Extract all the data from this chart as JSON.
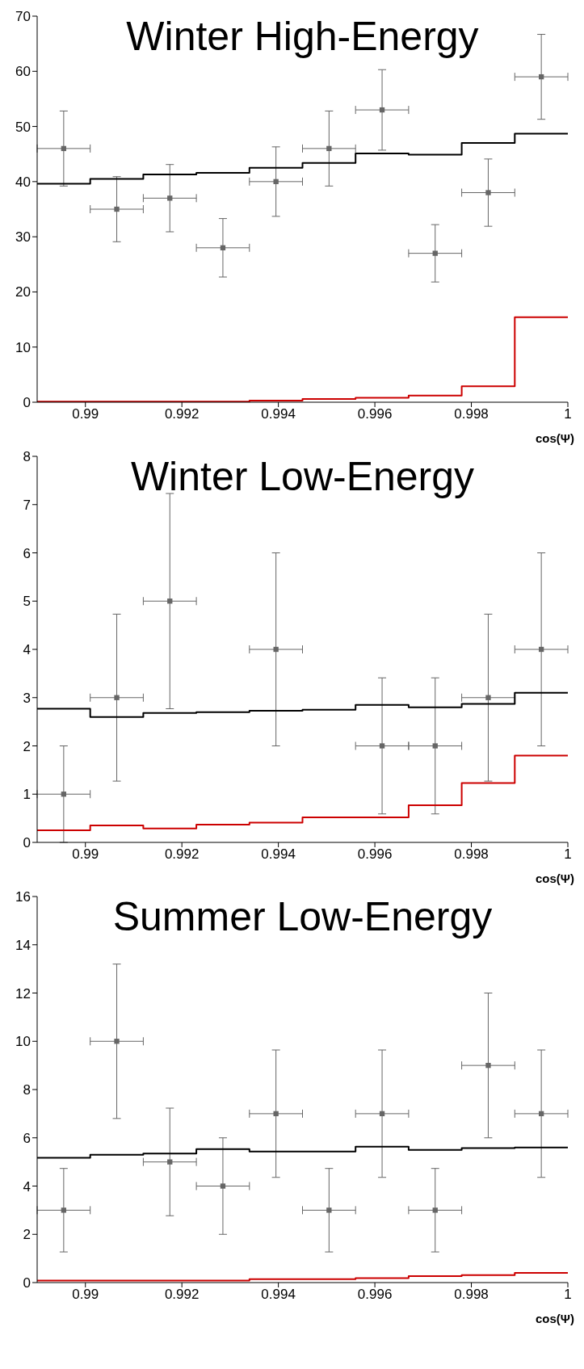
{
  "chart_data": [
    {
      "type": "scatter",
      "title": "Winter High-Energy",
      "xlabel": "cos(Ψ)",
      "xlim": [
        0.989,
        1
      ],
      "xticks": [
        0.99,
        0.992,
        0.994,
        0.996,
        0.998,
        1
      ],
      "ylim": [
        0,
        70
      ],
      "yticks": [
        0,
        10,
        20,
        30,
        40,
        50,
        60,
        70
      ],
      "series": [
        {
          "color": "#666666",
          "marker": "square",
          "x": [
            0.98955,
            0.99065,
            0.99175,
            0.99285,
            0.99395,
            0.99505,
            0.99615,
            0.99725,
            0.99835,
            0.99945
          ],
          "values": [
            46,
            35,
            37,
            28,
            40,
            46,
            53,
            27,
            38,
            59
          ],
          "errors": [
            [
              39.2,
              52.8
            ],
            [
              29.1,
              40.9
            ],
            [
              30.9,
              43.1
            ],
            [
              22.7,
              33.3
            ],
            [
              33.7,
              46.3
            ],
            [
              39.2,
              52.8
            ],
            [
              45.7,
              60.3
            ],
            [
              21.8,
              32.2
            ],
            [
              31.9,
              44.1
            ],
            [
              51.3,
              66.7
            ]
          ],
          "xerrors": [
            0.00055,
            0.00055,
            0.00055,
            0.00055,
            0.00055,
            0.00055,
            0.00055,
            0.00055,
            0.00055,
            0.00055
          ]
        },
        {
          "type": "step",
          "color": "#000000",
          "line_style": "solid",
          "x": [
            0.989,
            0.9901,
            0.9912,
            0.9923,
            0.9934,
            0.9945,
            0.9956,
            0.9967,
            0.9978,
            0.9989,
            1
          ],
          "values": [
            39.6,
            40.5,
            41.3,
            41.6,
            42.5,
            43.4,
            45.1,
            44.9,
            47.0,
            48.7,
            48.7
          ]
        },
        {
          "type": "step",
          "color": "#cc0000",
          "line_style": "solid",
          "x": [
            0.989,
            0.9901,
            0.9912,
            0.9923,
            0.9934,
            0.9945,
            0.9956,
            0.9967,
            0.9978,
            0.9989,
            1
          ],
          "values": [
            0.1,
            0.1,
            0.1,
            0.1,
            0.3,
            0.6,
            0.8,
            1.2,
            2.9,
            15.4,
            15.4
          ]
        }
      ]
    },
    {
      "type": "scatter",
      "title": "Winter Low-Energy",
      "xlabel": "cos(Ψ)",
      "xlim": [
        0.989,
        1
      ],
      "xticks": [
        0.99,
        0.992,
        0.994,
        0.996,
        0.998,
        1
      ],
      "ylim": [
        0,
        8
      ],
      "yticks": [
        0,
        1,
        2,
        3,
        4,
        5,
        6,
        7,
        8
      ],
      "series": [
        {
          "color": "#666666",
          "marker": "square",
          "x": [
            0.98955,
            0.99065,
            0.99175,
            0.99395,
            0.99615,
            0.99725,
            0.99835,
            0.99945
          ],
          "values": [
            1,
            3,
            5,
            4,
            2,
            2,
            3,
            4
          ],
          "errors": [
            [
              0,
              2
            ],
            [
              1.27,
              4.73
            ],
            [
              2.77,
              7.23
            ],
            [
              2,
              6
            ],
            [
              0.59,
              3.41
            ],
            [
              0.59,
              3.41
            ],
            [
              1.27,
              4.73
            ],
            [
              2,
              6
            ]
          ],
          "xerrors": [
            0.00055,
            0.00055,
            0.00055,
            0.00055,
            0.00055,
            0.00055,
            0.00055,
            0.00055
          ]
        },
        {
          "type": "step",
          "color": "#000000",
          "line_style": "solid",
          "x": [
            0.989,
            0.9901,
            0.9912,
            0.9923,
            0.9934,
            0.9945,
            0.9956,
            0.9967,
            0.9978,
            0.9989,
            1
          ],
          "values": [
            2.77,
            2.6,
            2.68,
            2.7,
            2.73,
            2.75,
            2.85,
            2.8,
            2.87,
            3.1,
            3.1
          ]
        },
        {
          "type": "step",
          "color": "#cc0000",
          "line_style": "solid",
          "x": [
            0.989,
            0.9901,
            0.9912,
            0.9923,
            0.9934,
            0.9945,
            0.9956,
            0.9967,
            0.9978,
            0.9989,
            1
          ],
          "values": [
            0.25,
            0.35,
            0.29,
            0.37,
            0.41,
            0.52,
            0.52,
            0.77,
            1.23,
            1.8,
            1.8
          ]
        }
      ]
    },
    {
      "type": "scatter",
      "title": "Summer Low-Energy",
      "xlabel": "cos(Ψ)",
      "xlim": [
        0.989,
        1
      ],
      "xticks": [
        0.99,
        0.992,
        0.994,
        0.996,
        0.998,
        1
      ],
      "ylim": [
        0,
        16
      ],
      "yticks": [
        0,
        2,
        4,
        6,
        8,
        10,
        12,
        14,
        16
      ],
      "series": [
        {
          "color": "#666666",
          "marker": "square",
          "x": [
            0.98955,
            0.99065,
            0.99175,
            0.99285,
            0.99395,
            0.99505,
            0.99615,
            0.99725,
            0.99835,
            0.99945
          ],
          "values": [
            3,
            10,
            5,
            4,
            7,
            3,
            7,
            3,
            9,
            7
          ],
          "errors": [
            [
              1.27,
              4.73
            ],
            [
              6.8,
              13.2
            ],
            [
              2.77,
              7.23
            ],
            [
              2,
              6
            ],
            [
              4.36,
              9.64
            ],
            [
              1.27,
              4.73
            ],
            [
              4.36,
              9.64
            ],
            [
              1.27,
              4.73
            ],
            [
              6,
              12
            ],
            [
              4.36,
              9.64
            ]
          ],
          "xerrors": [
            0.00055,
            0.00055,
            0.00055,
            0.00055,
            0.00055,
            0.00055,
            0.00055,
            0.00055,
            0.00055,
            0.00055
          ]
        },
        {
          "type": "step",
          "color": "#000000",
          "line_style": "solid",
          "x": [
            0.989,
            0.9901,
            0.9912,
            0.9923,
            0.9934,
            0.9945,
            0.9956,
            0.9967,
            0.9978,
            0.9989,
            1
          ],
          "values": [
            5.17,
            5.3,
            5.35,
            5.53,
            5.43,
            5.43,
            5.63,
            5.5,
            5.57,
            5.6,
            5.6
          ]
        },
        {
          "type": "step",
          "color": "#cc0000",
          "line_style": "solid",
          "x": [
            0.989,
            0.9901,
            0.9912,
            0.9923,
            0.9934,
            0.9945,
            0.9956,
            0.9967,
            0.9978,
            0.9989,
            1
          ],
          "values": [
            0.08,
            0.08,
            0.08,
            0.08,
            0.14,
            0.14,
            0.18,
            0.27,
            0.31,
            0.4,
            0.4
          ]
        }
      ]
    }
  ]
}
